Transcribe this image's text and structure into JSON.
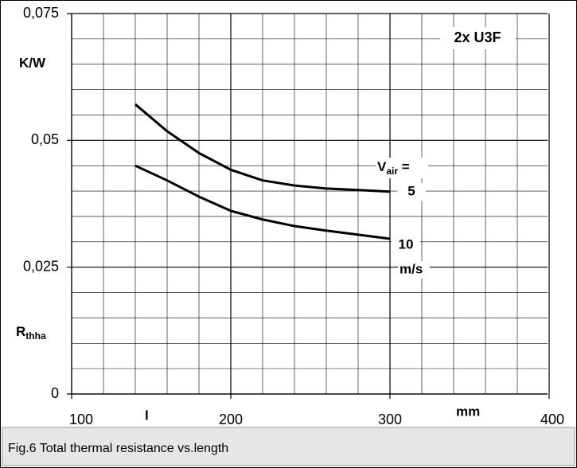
{
  "chart_data": {
    "type": "line",
    "title": "2x U3F",
    "y_label": {
      "main": "R",
      "sub": "thha"
    },
    "y_unit": "K/W",
    "x_label": "l",
    "x_unit": "mm",
    "legend_title": {
      "main": "V",
      "sub": "air",
      "suffix": " ="
    },
    "legend_unit": "m/s",
    "caption": "Fig.6 Total thermal resistance vs.length",
    "x": [
      140,
      160,
      180,
      200,
      220,
      240,
      260,
      280,
      300
    ],
    "series": [
      {
        "name": "5",
        "color": "#000000",
        "values": [
          0.0571,
          0.0518,
          0.0475,
          0.0442,
          0.0421,
          0.0411,
          0.0405,
          0.0402,
          0.0399
        ]
      },
      {
        "name": "10",
        "color": "#000000",
        "values": [
          0.045,
          0.0421,
          0.0389,
          0.0361,
          0.0344,
          0.0331,
          0.0322,
          0.0314,
          0.0306
        ]
      }
    ],
    "xlim": [
      100,
      400
    ],
    "ylim": [
      0,
      0.075
    ],
    "xticks": [
      100,
      200,
      300,
      400
    ],
    "yticks": [
      0,
      {
        "value": 0.025,
        "label": "0,025"
      },
      {
        "value": 0.05,
        "label": "0,05"
      },
      {
        "value": 0.075,
        "label": "0,075"
      }
    ],
    "x_minor_ticks": [
      120,
      140,
      160,
      180,
      220,
      240,
      260,
      280,
      320,
      340,
      360,
      380
    ],
    "y_minor_ticks": [
      0.005,
      0.01,
      0.015,
      0.02,
      0.03,
      0.035,
      0.04,
      0.045,
      0.055,
      0.06,
      0.065,
      0.07
    ],
    "grid": true
  }
}
